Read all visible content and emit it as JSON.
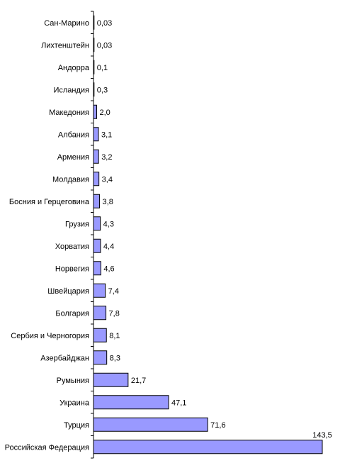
{
  "chart_data": {
    "type": "bar",
    "orientation": "horizontal",
    "title": "",
    "xlabel": "",
    "ylabel": "",
    "grid": false,
    "legend": "none",
    "bar_color": "#9999ff",
    "bar_stroke": "#000000",
    "categories": [
      "Сан-Марино",
      "Лихтенштейн",
      "Андорра",
      "Исландия",
      "Македония",
      "Албания",
      "Армения",
      "Молдавия",
      "Босния и Герцеговина",
      "Грузия",
      "Хорватия",
      "Норвегия",
      "Швейцария",
      "Болгария",
      "Сербия и Черногория",
      "Азербайджан",
      "Румыния",
      "Украина",
      "Турция",
      "Российская Федерация"
    ],
    "values": [
      0.03,
      0.03,
      0.1,
      0.3,
      2.0,
      3.1,
      3.2,
      3.4,
      3.8,
      4.3,
      4.4,
      4.6,
      7.4,
      7.8,
      8.1,
      8.3,
      21.7,
      47.1,
      71.6,
      143.5
    ],
    "value_labels": [
      "0,03",
      "0,03",
      "0,1",
      "0,3",
      "2,0",
      "3,1",
      "3,2",
      "3,4",
      "3,8",
      "4,3",
      "4,4",
      "4,6",
      "7,4",
      "7,8",
      "8,1",
      "8,3",
      "21,7",
      "47,1",
      "71,6",
      "143,5"
    ],
    "xlim": [
      0,
      143.5
    ]
  }
}
